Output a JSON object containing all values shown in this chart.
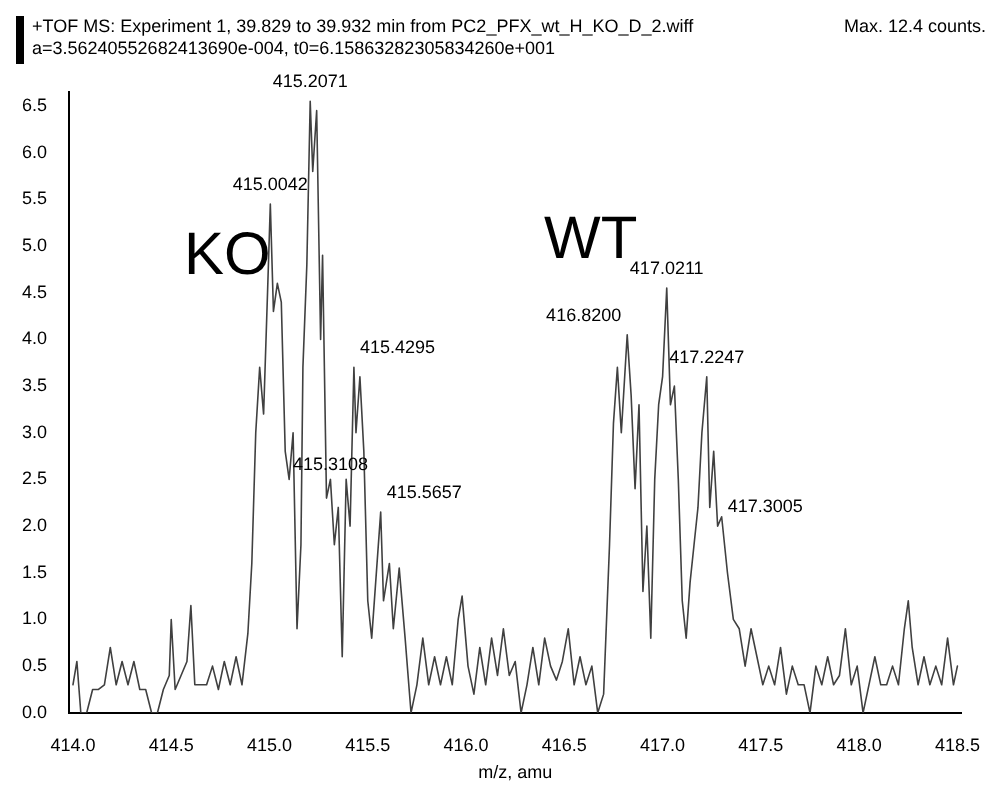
{
  "chart_data": {
    "type": "line",
    "subtitle": "+TOF MS: Experiment 1, 39.829 to 39.932 min from PC2_PFX_wt_H_KO_D_2.wiff",
    "xlabel": "m/z, amu",
    "annotations": [
      "a=3.56240552682413690e-004, t0=6.15863282305834260e+001",
      "Max. 12.4 counts.",
      "KO",
      "WT",
      {
        "text": "415.0042",
        "x": 415.0042,
        "y": 5.45
      },
      {
        "text": "415.2071",
        "x": 415.2071,
        "y": 6.55
      },
      {
        "text": "415.4295",
        "x": 415.4295,
        "y": 3.7
      },
      {
        "text": "415.3108",
        "x": 415.3108,
        "y": 2.45
      },
      {
        "text": "415.5657",
        "x": 415.5657,
        "y": 2.15
      },
      {
        "text": "416.8200",
        "x": 416.82,
        "y": 4.05
      },
      {
        "text": "417.0211",
        "x": 417.0211,
        "y": 4.55
      },
      {
        "text": "417.2247",
        "x": 417.2247,
        "y": 3.6
      },
      {
        "text": "417.3005",
        "x": 417.3005,
        "y": 2.0
      }
    ],
    "xlim": [
      413.98,
      418.52
    ],
    "ylim": [
      0,
      6.65
    ],
    "xticks": [
      {
        "value": 414,
        "label": "414.0"
      },
      414.5,
      {
        "value": 415,
        "label": "415.0"
      },
      415.5,
      {
        "value": 416,
        "label": "416.0"
      },
      416.5,
      {
        "value": 417,
        "label": "417.0"
      },
      417.5,
      {
        "value": 418,
        "label": "418.0"
      },
      418.5
    ],
    "yticks": [
      {
        "value": 0,
        "label": "0.0"
      },
      0.5,
      {
        "value": 1,
        "label": "1.0"
      },
      1.5,
      {
        "value": 2,
        "label": "2.0"
      },
      2.5,
      {
        "value": 3,
        "label": "3.0"
      },
      3.5,
      {
        "value": 4,
        "label": "4.0"
      },
      4.5,
      {
        "value": 5,
        "label": "5.0"
      },
      5.5,
      {
        "value": 6,
        "label": "6.0"
      },
      6.5
    ],
    "grid": false,
    "legend": false,
    "marker": "none",
    "line_style": "solid",
    "series": [
      {
        "color": "#404040",
        "x": [
          414.0,
          414.02,
          414.04,
          414.07,
          414.1,
          414.13,
          414.16,
          414.19,
          414.22,
          414.25,
          414.28,
          414.31,
          414.34,
          414.37,
          414.4,
          414.43,
          414.46,
          414.49,
          414.5,
          414.52,
          414.55,
          414.58,
          414.6,
          414.62,
          414.65,
          414.68,
          414.71,
          414.74,
          414.77,
          414.8,
          414.83,
          414.86,
          414.89,
          414.91,
          414.93,
          414.95,
          414.97,
          414.99,
          415.0042,
          415.02,
          415.04,
          415.06,
          415.08,
          415.1,
          415.12,
          415.14,
          415.16,
          415.17,
          415.19,
          415.2071,
          415.22,
          415.24,
          415.26,
          415.27,
          415.29,
          415.31,
          415.33,
          415.35,
          415.37,
          415.39,
          415.41,
          415.4295,
          415.44,
          415.46,
          415.48,
          415.5,
          415.52,
          415.5657,
          415.58,
          415.61,
          415.63,
          415.66,
          415.69,
          415.72,
          415.75,
          415.78,
          415.81,
          415.84,
          415.87,
          415.9,
          415.93,
          415.96,
          415.98,
          416.01,
          416.04,
          416.07,
          416.1,
          416.13,
          416.16,
          416.19,
          416.22,
          416.25,
          416.28,
          416.31,
          416.34,
          416.37,
          416.4,
          416.43,
          416.46,
          416.49,
          416.52,
          416.55,
          416.58,
          416.61,
          416.64,
          416.67,
          416.7,
          416.73,
          416.75,
          416.77,
          416.79,
          416.82,
          416.84,
          416.86,
          416.88,
          416.9,
          416.92,
          416.94,
          416.96,
          416.98,
          417.0,
          417.0211,
          417.04,
          417.06,
          417.08,
          417.1,
          417.12,
          417.14,
          417.16,
          417.18,
          417.2,
          417.2247,
          417.24,
          417.26,
          417.28,
          417.3005,
          417.33,
          417.36,
          417.39,
          417.42,
          417.45,
          417.48,
          417.51,
          417.54,
          417.57,
          417.6,
          417.63,
          417.66,
          417.69,
          417.72,
          417.75,
          417.78,
          417.81,
          417.84,
          417.87,
          417.9,
          417.93,
          417.96,
          417.99,
          418.02,
          418.05,
          418.08,
          418.11,
          418.14,
          418.17,
          418.2,
          418.23,
          418.25,
          418.27,
          418.3,
          418.33,
          418.36,
          418.39,
          418.42,
          418.45,
          418.48,
          418.5
        ],
        "values": [
          0.3,
          0.55,
          0,
          0,
          0.25,
          0.25,
          0.3,
          0.7,
          0.3,
          0.55,
          0.3,
          0.55,
          0.25,
          0.25,
          0,
          0,
          0.25,
          0.4,
          1.0,
          0.25,
          0.4,
          0.55,
          1.15,
          0.3,
          0.3,
          0.3,
          0.5,
          0.25,
          0.55,
          0.3,
          0.6,
          0.3,
          0.85,
          1.6,
          3.0,
          3.7,
          3.2,
          4.5,
          5.45,
          4.3,
          4.6,
          4.4,
          2.8,
          2.5,
          3.0,
          0.9,
          1.8,
          3.7,
          4.8,
          6.55,
          5.8,
          6.45,
          4.0,
          4.9,
          2.3,
          2.5,
          1.8,
          2.2,
          0.6,
          2.5,
          2.0,
          3.7,
          3.0,
          3.6,
          2.8,
          1.2,
          0.8,
          2.15,
          1.2,
          1.6,
          0.9,
          1.55,
          0.8,
          0,
          0.3,
          0.8,
          0.3,
          0.6,
          0.3,
          0.6,
          0.3,
          1.0,
          1.25,
          0.5,
          0.2,
          0.7,
          0.3,
          0.8,
          0.4,
          0.9,
          0.4,
          0.55,
          0,
          0.3,
          0.7,
          0.3,
          0.8,
          0.5,
          0.35,
          0.55,
          0.9,
          0.3,
          0.6,
          0.3,
          0.5,
          0,
          0.2,
          1.8,
          3.1,
          3.7,
          3.0,
          4.05,
          3.4,
          2.4,
          3.3,
          1.3,
          2.0,
          0.8,
          2.5,
          3.3,
          3.6,
          4.55,
          3.3,
          3.5,
          2.5,
          1.2,
          0.8,
          1.4,
          1.8,
          2.2,
          3.0,
          3.6,
          2.2,
          2.8,
          2.0,
          2.1,
          1.5,
          1.0,
          0.9,
          0.5,
          0.9,
          0.6,
          0.3,
          0.5,
          0.3,
          0.7,
          0.2,
          0.5,
          0.3,
          0.3,
          0,
          0.5,
          0.3,
          0.6,
          0.3,
          0.4,
          0.9,
          0.3,
          0.5,
          0,
          0.3,
          0.6,
          0.3,
          0.3,
          0.5,
          0.3,
          0.9,
          1.2,
          0.7,
          0.3,
          0.6,
          0.3,
          0.5,
          0.3,
          0.8,
          0.3,
          0.5
        ]
      }
    ]
  }
}
